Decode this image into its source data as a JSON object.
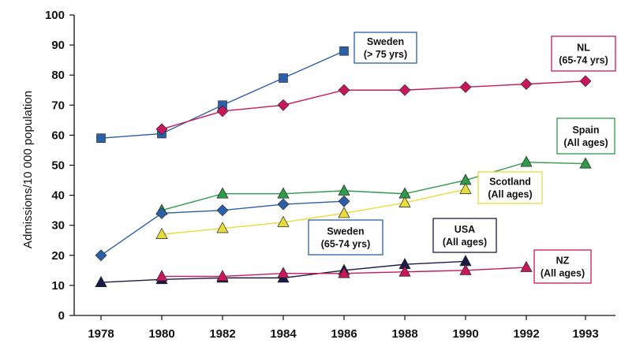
{
  "chart_data": {
    "type": "line",
    "title": "",
    "xlabel": "",
    "ylabel": "Admissions/10 000 population",
    "x_tick_labels": [
      "1978",
      "1980",
      "1982",
      "1984",
      "1986",
      "1988",
      "1990",
      "1992",
      "1993"
    ],
    "y_tick_labels": [
      "0",
      "10",
      "20",
      "30",
      "40",
      "50",
      "60",
      "70",
      "80",
      "90",
      "100"
    ],
    "ylim": [
      0,
      100
    ],
    "grid": false,
    "series": [
      {
        "id": "sweden75",
        "label_lines": [
          "Sweden",
          "(> 75 yrs)"
        ],
        "color": "#2B5FA8",
        "marker": "square",
        "points": [
          [
            "1978",
            59
          ],
          [
            "1980",
            60.5
          ],
          [
            "1982",
            70
          ],
          [
            "1984",
            79
          ],
          [
            "1986",
            88
          ]
        ]
      },
      {
        "id": "nl",
        "label_lines": [
          "NL",
          "(65-74 yrs)"
        ],
        "color": "#C8185C",
        "marker": "diamond",
        "points": [
          [
            "1980",
            62
          ],
          [
            "1982",
            68
          ],
          [
            "1984",
            70
          ],
          [
            "1986",
            75
          ],
          [
            "1988",
            75
          ],
          [
            "1990",
            76
          ],
          [
            "1992",
            77
          ],
          [
            "1993",
            78
          ]
        ]
      },
      {
        "id": "spain",
        "label_lines": [
          "Spain",
          "(All ages)"
        ],
        "color": "#2E9A4A",
        "marker": "triangle",
        "points": [
          [
            "1980",
            35
          ],
          [
            "1982",
            40.5
          ],
          [
            "1984",
            40.5
          ],
          [
            "1986",
            41.5
          ],
          [
            "1988",
            40.5
          ],
          [
            "1990",
            45
          ],
          [
            "1992",
            51
          ],
          [
            "1993",
            50.5
          ]
        ]
      },
      {
        "id": "sweden6574",
        "label_lines": [
          "Sweden",
          "(65-74 yrs)"
        ],
        "color": "#2B5FA8",
        "marker": "diamond",
        "points": [
          [
            "1978",
            20
          ],
          [
            "1980",
            34
          ],
          [
            "1982",
            35
          ],
          [
            "1984",
            37
          ],
          [
            "1986",
            38
          ]
        ]
      },
      {
        "id": "scotland",
        "label_lines": [
          "Scotland",
          "(All ages)"
        ],
        "color": "#E8DC3A",
        "marker": "triangle",
        "points": [
          [
            "1980",
            27
          ],
          [
            "1982",
            29
          ],
          [
            "1984",
            31
          ],
          [
            "1986",
            34
          ],
          [
            "1988",
            37.5
          ],
          [
            "1990",
            42
          ]
        ]
      },
      {
        "id": "usa",
        "label_lines": [
          "USA",
          "(All ages)"
        ],
        "color": "#1A1A4A",
        "marker": "triangle",
        "points": [
          [
            "1978",
            11
          ],
          [
            "1980",
            12
          ],
          [
            "1982",
            12.5
          ],
          [
            "1984",
            12.5
          ],
          [
            "1986",
            15
          ],
          [
            "1988",
            17
          ],
          [
            "1990",
            18
          ]
        ]
      },
      {
        "id": "nz",
        "label_lines": [
          "NZ",
          "(All ages)"
        ],
        "color": "#C8185C",
        "marker": "triangle",
        "points": [
          [
            "1980",
            13
          ],
          [
            "1982",
            13
          ],
          [
            "1984",
            14
          ],
          [
            "1986",
            14
          ],
          [
            "1988",
            14.5
          ],
          [
            "1990",
            15
          ],
          [
            "1992",
            16
          ]
        ]
      }
    ]
  }
}
